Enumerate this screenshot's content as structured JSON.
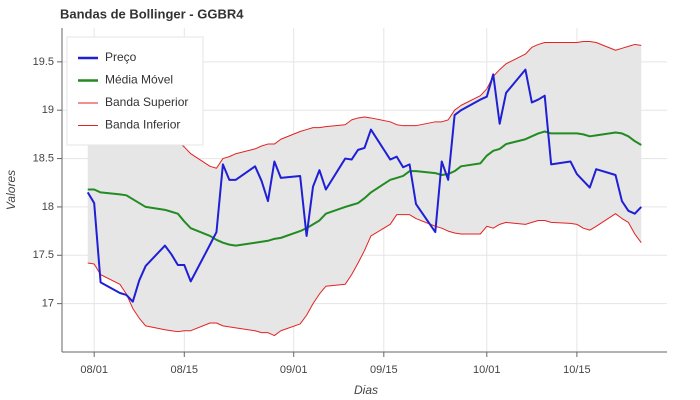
{
  "chart_data": {
    "type": "line",
    "title": "Bandas de Bollinger - GGBR4",
    "x_label": "Dias",
    "y_label": "Valores",
    "x": [
      "07/31",
      "08/01",
      "08/02",
      "08/05",
      "08/06",
      "08/07",
      "08/08",
      "08/09",
      "08/12",
      "08/13",
      "08/14",
      "08/15",
      "08/16",
      "08/19",
      "08/20",
      "08/21",
      "08/22",
      "08/23",
      "08/26",
      "08/27",
      "08/28",
      "08/29",
      "08/30",
      "09/02",
      "09/03",
      "09/04",
      "09/05",
      "09/06",
      "09/09",
      "09/10",
      "09/11",
      "09/12",
      "09/13",
      "09/16",
      "09/17",
      "09/18",
      "09/19",
      "09/20",
      "09/23",
      "09/24",
      "09/25",
      "09/26",
      "09/27",
      "09/30",
      "10/01",
      "10/02",
      "10/03",
      "10/04",
      "10/07",
      "10/08",
      "10/09",
      "10/10",
      "10/11",
      "10/14",
      "10/15",
      "10/16",
      "10/17",
      "10/18",
      "10/21",
      "10/22",
      "10/23",
      "10/24",
      "10/25"
    ],
    "series": [
      {
        "name": "Preço",
        "color": "#1f1fd6",
        "values": [
          18.15,
          18.04,
          17.22,
          17.11,
          17.09,
          17.02,
          17.24,
          17.39,
          17.6,
          17.51,
          17.4,
          17.4,
          17.23,
          17.61,
          17.74,
          18.44,
          18.28,
          18.28,
          18.42,
          18.27,
          18.06,
          18.47,
          18.3,
          18.32,
          17.7,
          18.21,
          18.38,
          18.18,
          18.5,
          18.49,
          18.59,
          18.61,
          18.8,
          18.49,
          18.52,
          18.41,
          18.44,
          18.03,
          17.74,
          18.47,
          18.28,
          18.95,
          19.0,
          19.11,
          19.14,
          19.37,
          18.86,
          19.18,
          19.42,
          19.08,
          19.11,
          19.15,
          18.44,
          18.47,
          18.34,
          18.27,
          18.2,
          18.39,
          18.33,
          18.06,
          17.96,
          17.93,
          18.0
        ]
      },
      {
        "name": "Média Móvel",
        "color": "#228b22",
        "values": [
          18.18,
          18.18,
          18.15,
          18.13,
          18.12,
          18.08,
          18.04,
          18.0,
          17.97,
          17.95,
          17.93,
          17.85,
          17.78,
          17.7,
          17.66,
          17.63,
          17.61,
          17.6,
          17.63,
          17.64,
          17.65,
          17.67,
          17.68,
          17.75,
          17.78,
          17.82,
          17.86,
          17.93,
          18.0,
          18.02,
          18.04,
          18.09,
          18.15,
          18.28,
          18.3,
          18.32,
          18.37,
          18.37,
          18.35,
          18.33,
          18.34,
          18.37,
          18.42,
          18.45,
          18.53,
          18.58,
          18.6,
          18.65,
          18.7,
          18.73,
          18.76,
          18.78,
          18.76,
          18.76,
          18.76,
          18.75,
          18.73,
          18.74,
          18.77,
          18.76,
          18.73,
          18.68,
          18.64
        ]
      },
      {
        "name": "Banda Superior",
        "color": "#e32222",
        "values": [
          18.7,
          18.72,
          18.75,
          18.76,
          18.78,
          18.8,
          18.78,
          18.75,
          18.72,
          18.7,
          18.68,
          18.62,
          18.55,
          18.42,
          18.4,
          18.5,
          18.52,
          18.55,
          18.6,
          18.63,
          18.65,
          18.65,
          18.7,
          18.78,
          18.8,
          18.82,
          18.82,
          18.83,
          18.85,
          18.9,
          18.92,
          18.93,
          18.92,
          18.88,
          18.85,
          18.84,
          18.84,
          18.84,
          18.88,
          18.88,
          18.9,
          19.0,
          19.05,
          19.15,
          19.22,
          19.35,
          19.42,
          19.48,
          19.58,
          19.65,
          19.68,
          19.7,
          19.7,
          19.7,
          19.7,
          19.71,
          19.71,
          19.7,
          19.62,
          19.64,
          19.66,
          19.68,
          19.67
        ]
      },
      {
        "name": "Banda Inferior",
        "color": "#e32222",
        "values": [
          17.42,
          17.41,
          17.3,
          17.2,
          17.1,
          16.95,
          16.85,
          16.77,
          16.73,
          16.72,
          16.71,
          16.72,
          16.72,
          16.8,
          16.8,
          16.77,
          16.76,
          16.75,
          16.72,
          16.7,
          16.7,
          16.67,
          16.72,
          16.79,
          16.88,
          17.0,
          17.1,
          17.18,
          17.2,
          17.3,
          17.42,
          17.55,
          17.7,
          17.82,
          17.92,
          17.92,
          17.92,
          17.88,
          17.8,
          17.78,
          17.75,
          17.73,
          17.72,
          17.72,
          17.8,
          17.78,
          17.82,
          17.84,
          17.82,
          17.84,
          17.86,
          17.86,
          17.84,
          17.83,
          17.82,
          17.78,
          17.76,
          17.8,
          17.93,
          17.88,
          17.84,
          17.72,
          17.63
        ]
      }
    ],
    "band_color": "#e6e6e6",
    "xlim": [
      "07/27",
      "10/29"
    ],
    "xticks": [
      "08/01",
      "08/15",
      "09/01",
      "09/15",
      "10/01",
      "10/15"
    ],
    "ylim": [
      16.5,
      19.85
    ],
    "yticks": [
      17,
      17.5,
      18,
      18.5,
      19,
      19.5
    ],
    "grid": true,
    "legend": "upper left"
  }
}
